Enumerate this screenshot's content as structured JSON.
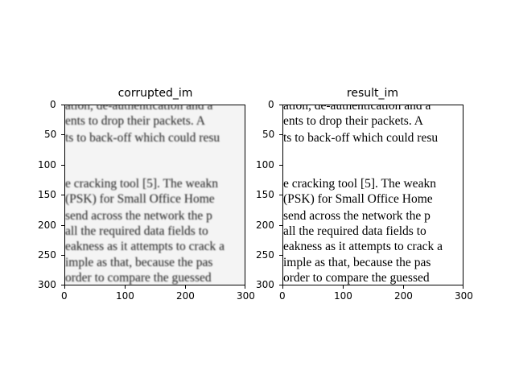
{
  "panels": [
    {
      "title": "corrupted_im",
      "xticks": [
        "0",
        "100",
        "200",
        "300"
      ],
      "yticks": [
        "0",
        "50",
        "100",
        "150",
        "200",
        "250",
        "300"
      ],
      "lines_top": [
        "ation, de-authentication and a",
        "ents to drop their packets. A",
        "ts to back-off  which could resu"
      ],
      "lines_bottom": [
        "e cracking tool [5].  The weakn",
        "(PSK) for Small Office Home",
        "send across the network the p",
        "all the required data fields to",
        "eakness as it attempts to crack a",
        "imple as that, because the pas",
        "order to compare the guessed"
      ]
    },
    {
      "title": "result_im",
      "xticks": [
        "0",
        "100",
        "200",
        "300"
      ],
      "yticks": [
        "0",
        "50",
        "100",
        "150",
        "200",
        "250",
        "300"
      ],
      "lines_top": [
        "ation, de-authentication and a",
        "ents to drop their packets. A",
        "ts to back-off  which could resu"
      ],
      "lines_bottom": [
        "e cracking tool [5].  The weakn",
        "(PSK) for Small Office Home",
        "send across the network the p",
        "all the required data fields to",
        "eakness as it attempts to crack a",
        "imple as that, because the pas",
        "order to compare the guessed"
      ]
    }
  ]
}
